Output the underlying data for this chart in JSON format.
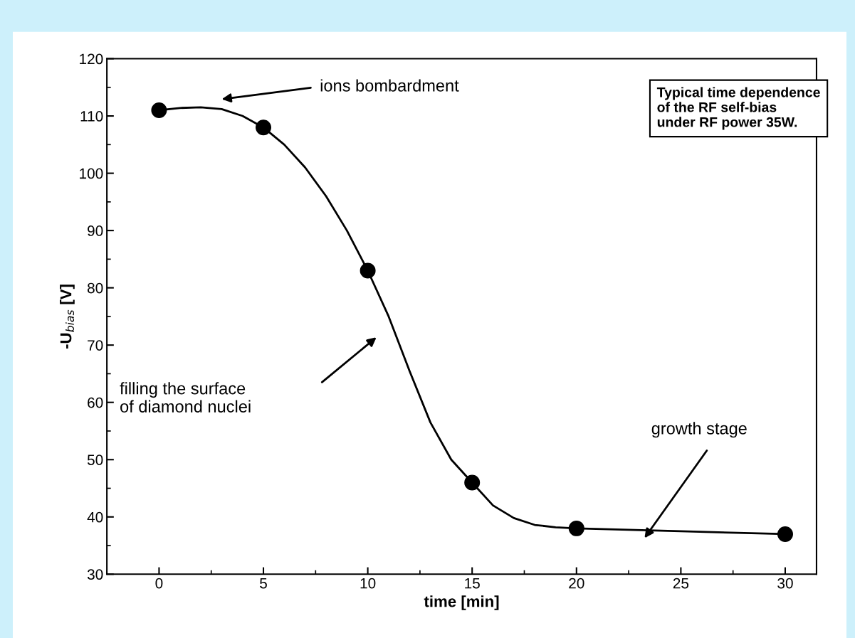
{
  "chart_data": {
    "type": "line",
    "xlabel": "time [min]",
    "ylabel": "-U$_{bias}$ [V]",
    "xlim": [
      -2.5,
      31.5
    ],
    "ylim": [
      30,
      120
    ],
    "xticks": [
      0,
      5,
      10,
      15,
      20,
      25,
      30
    ],
    "yticks": [
      30,
      40,
      50,
      60,
      70,
      80,
      90,
      100,
      110,
      120
    ],
    "grid": false,
    "legend": false,
    "series": [
      {
        "color": "#000000",
        "marker": "none",
        "line_style": "solid",
        "x": [
          0,
          1,
          2,
          3,
          4,
          5,
          6,
          7,
          8,
          9,
          10,
          11,
          12,
          13,
          14,
          15,
          16,
          17,
          18,
          19,
          20,
          25,
          30
        ],
        "values": [
          111,
          111.4,
          111.5,
          111.2,
          110,
          108,
          105,
          101,
          96,
          90,
          83,
          75,
          65.5,
          56.5,
          50,
          46,
          42,
          39.8,
          38.6,
          38.2,
          38,
          37.5,
          37
        ]
      },
      {
        "type": "scatter",
        "color": "#000000",
        "marker": "circle",
        "x": [
          0,
          5,
          10,
          15,
          20,
          30
        ],
        "values": [
          111,
          108,
          83,
          46,
          38,
          37
        ]
      }
    ],
    "annotations": [
      "ions bombardment",
      "filling the surface\nof diamond nuclei",
      "growth stage",
      "Typical time dependence\nof the RF self-bias\nunder RF power 35W."
    ]
  }
}
